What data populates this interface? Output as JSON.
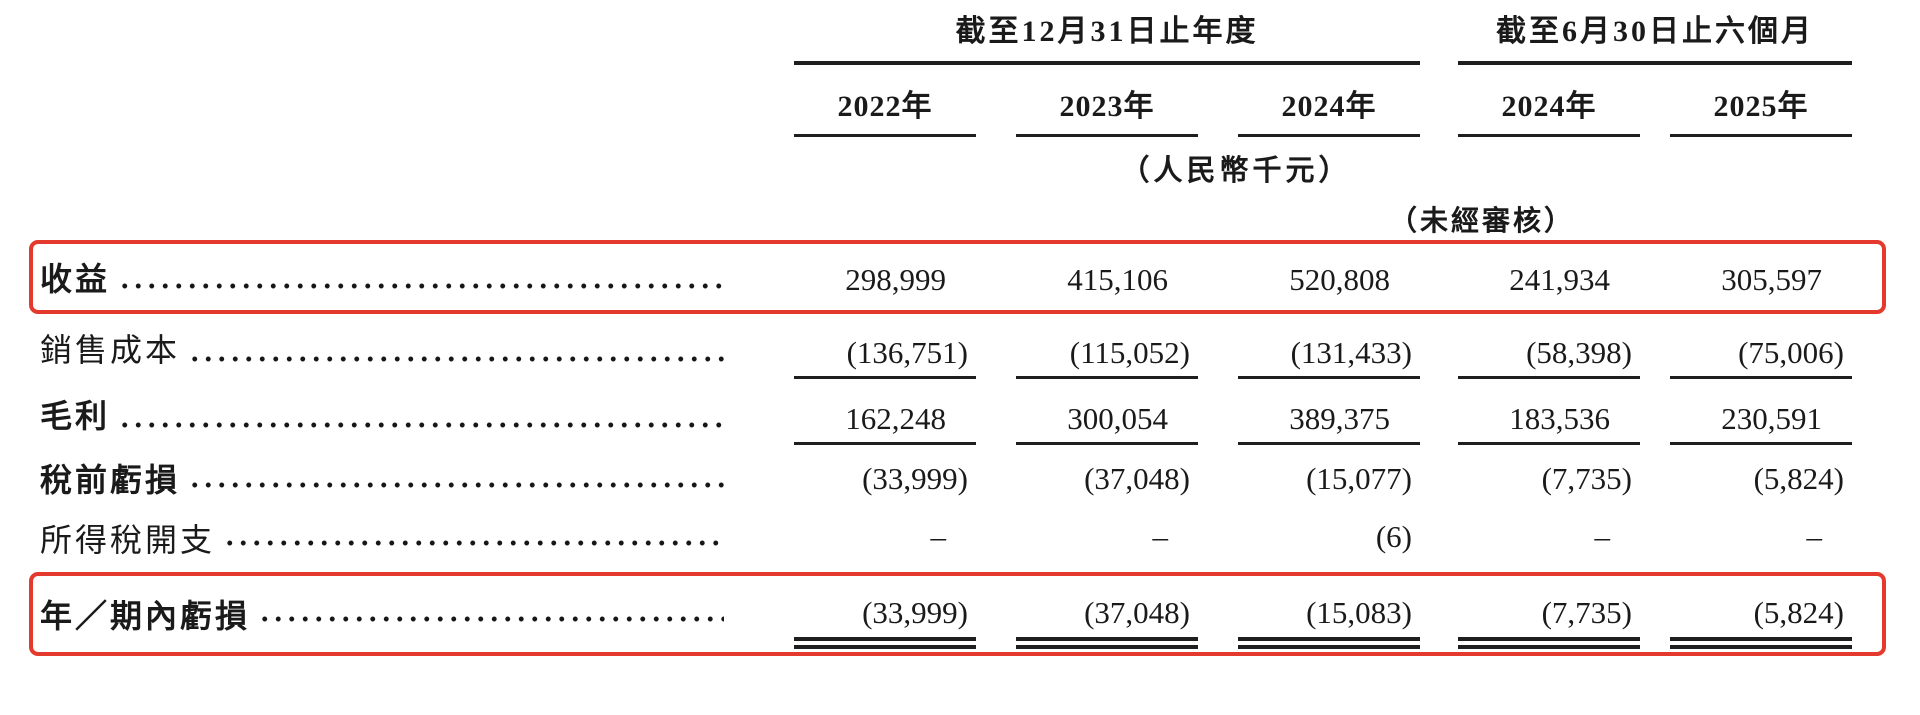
{
  "table": {
    "accent_red": "#e43a2e",
    "col_groups": [
      {
        "title": "截至12月31日止年度",
        "cols": [
          "2022年",
          "2023年",
          "2024年"
        ]
      },
      {
        "title": "截至6月30日止六個月",
        "cols": [
          "2024年",
          "2025年"
        ]
      }
    ],
    "unit_note": "（人民幣千元）",
    "unaudited_note": "（未經審核）",
    "rows": [
      {
        "label": "收益",
        "values": [
          "298,999",
          "415,106",
          "520,808",
          "241,934",
          "305,597"
        ]
      },
      {
        "label": "銷售成本",
        "values": [
          "(136,751)",
          "(115,052)",
          "(131,433)",
          "(58,398)",
          "(75,006)"
        ]
      },
      {
        "label": "毛利",
        "values": [
          "162,248",
          "300,054",
          "389,375",
          "183,536",
          "230,591"
        ]
      },
      {
        "label": "稅前虧損",
        "values": [
          "(33,999)",
          "(37,048)",
          "(15,077)",
          "(7,735)",
          "(5,824)"
        ]
      },
      {
        "label": "所得稅開支",
        "values": [
          "–",
          "–",
          "(6)",
          "–",
          "–"
        ]
      },
      {
        "label": "年／期內虧損",
        "values": [
          "(33,999)",
          "(37,048)",
          "(15,083)",
          "(7,735)",
          "(5,824)"
        ]
      }
    ]
  }
}
